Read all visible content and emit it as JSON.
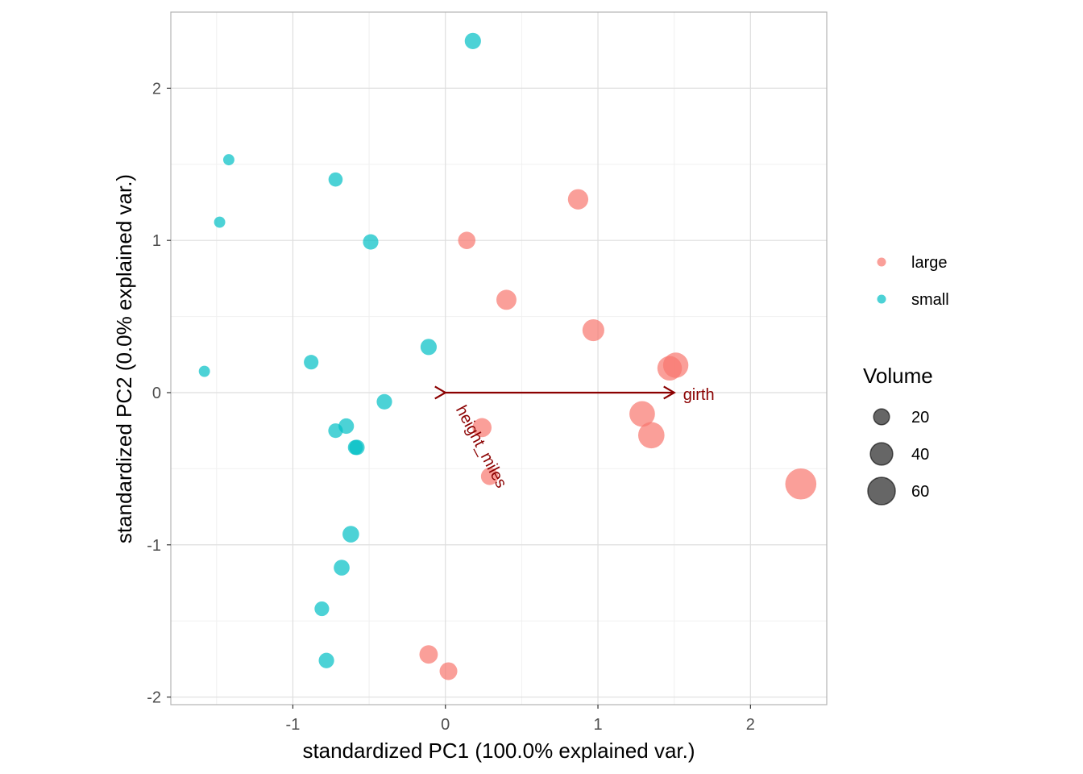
{
  "chart_data": {
    "type": "scatter",
    "title": "",
    "xlabel": "standardized PC1 (100.0% explained var.)",
    "ylabel": "standardized PC2 (0.0% explained var.)",
    "xlim": [
      -1.8,
      2.5
    ],
    "ylim": [
      -2.05,
      2.5
    ],
    "x_ticks": [
      -1,
      0,
      1,
      2
    ],
    "y_ticks": [
      -2,
      -1,
      0,
      1,
      2
    ],
    "grid": true,
    "legend_position": "right",
    "color_legend": {
      "entries": [
        {
          "label": "large",
          "color": "#F8766D"
        },
        {
          "label": "small",
          "color": "#00BFC4"
        }
      ]
    },
    "size_legend": {
      "title": "Volume",
      "entries": [
        {
          "label": "20",
          "value": 20
        },
        {
          "label": "40",
          "value": 40
        },
        {
          "label": "60",
          "value": 60
        }
      ]
    },
    "series": [
      {
        "name": "large",
        "color": "#F8766D",
        "points": [
          {
            "x": 0.87,
            "y": 1.27,
            "volume": 33
          },
          {
            "x": 0.14,
            "y": 1.0,
            "volume": 24
          },
          {
            "x": 0.4,
            "y": 0.61,
            "volume": 32
          },
          {
            "x": 0.97,
            "y": 0.41,
            "volume": 38
          },
          {
            "x": 1.47,
            "y": 0.16,
            "volume": 48
          },
          {
            "x": 1.51,
            "y": 0.18,
            "volume": 51
          },
          {
            "x": 1.29,
            "y": -0.14,
            "volume": 52
          },
          {
            "x": 1.35,
            "y": -0.28,
            "volume": 55
          },
          {
            "x": 0.24,
            "y": -0.23,
            "volume": 29
          },
          {
            "x": 0.29,
            "y": -0.55,
            "volume": 24
          },
          {
            "x": 2.33,
            "y": -0.6,
            "volume": 77
          },
          {
            "x": -0.11,
            "y": -1.72,
            "volume": 27
          },
          {
            "x": 0.02,
            "y": -1.83,
            "volume": 25
          }
        ]
      },
      {
        "name": "small",
        "color": "#00BFC4",
        "points": [
          {
            "x": 0.18,
            "y": 2.31,
            "volume": 21
          },
          {
            "x": -1.42,
            "y": 1.53,
            "volume": 10
          },
          {
            "x": -0.72,
            "y": 1.4,
            "volume": 16
          },
          {
            "x": -1.48,
            "y": 1.12,
            "volume": 10
          },
          {
            "x": -0.49,
            "y": 0.99,
            "volume": 19
          },
          {
            "x": -0.11,
            "y": 0.3,
            "volume": 21
          },
          {
            "x": -0.88,
            "y": 0.2,
            "volume": 17
          },
          {
            "x": -1.58,
            "y": 0.14,
            "volume": 10
          },
          {
            "x": -0.4,
            "y": -0.06,
            "volume": 19
          },
          {
            "x": -0.65,
            "y": -0.22,
            "volume": 19
          },
          {
            "x": -0.72,
            "y": -0.25,
            "volume": 17
          },
          {
            "x": -0.59,
            "y": -0.36,
            "volume": 18
          },
          {
            "x": -0.58,
            "y": -0.36,
            "volume": 19
          },
          {
            "x": -0.62,
            "y": -0.93,
            "volume": 22
          },
          {
            "x": -0.68,
            "y": -1.15,
            "volume": 20
          },
          {
            "x": -0.81,
            "y": -1.42,
            "volume": 17
          },
          {
            "x": -0.78,
            "y": -1.76,
            "volume": 19
          }
        ]
      }
    ],
    "loadings": {
      "color": "#8B0000",
      "arrows": [
        {
          "label": "girth",
          "x": 1.5,
          "y": 0.0
        },
        {
          "label": "height_miles",
          "x": 0.0,
          "y": 0.0
        }
      ]
    },
    "point_alpha": 0.7
  }
}
